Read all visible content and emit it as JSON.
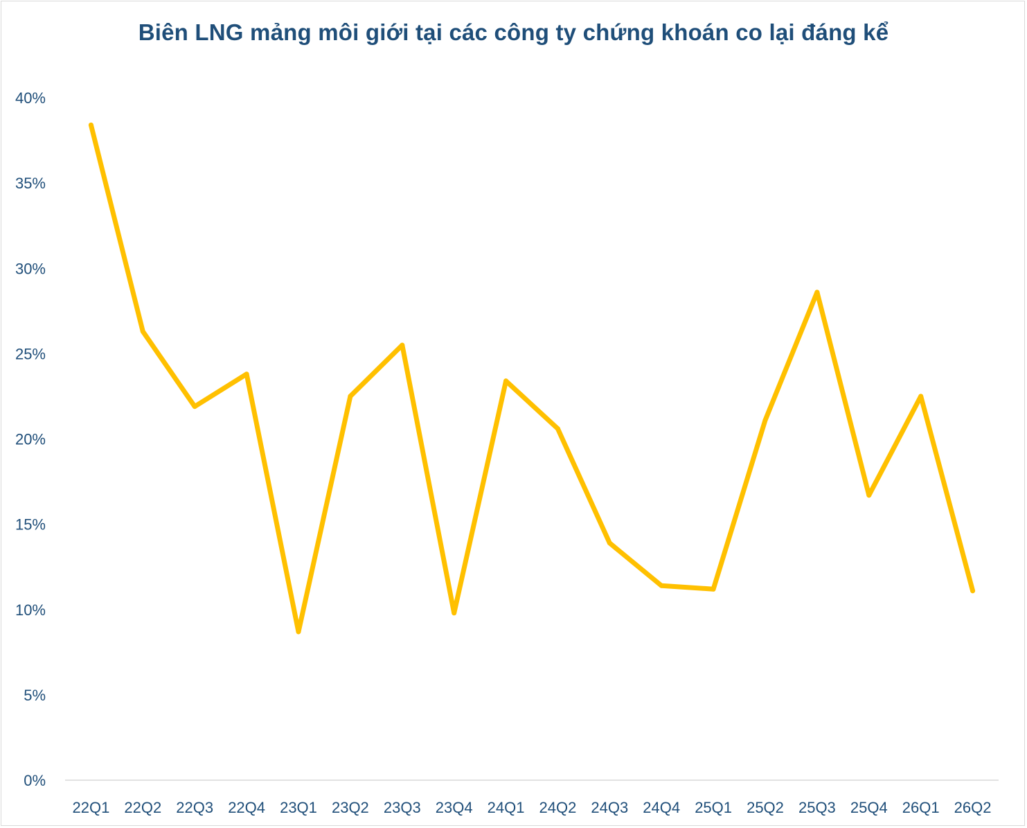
{
  "chart_data": {
    "type": "line",
    "title": "Biên LNG mảng môi giới tại các công ty chứng khoán co lại đáng kể",
    "xlabel": "",
    "ylabel": "",
    "categories": [
      "22Q1",
      "22Q2",
      "22Q3",
      "22Q4",
      "23Q1",
      "23Q2",
      "23Q3",
      "23Q4",
      "24Q1",
      "24Q2",
      "24Q3",
      "24Q4",
      "25Q1",
      "25Q2",
      "25Q3",
      "25Q4",
      "26Q1",
      "26Q2"
    ],
    "series": [
      {
        "values": [
          38.4,
          26.3,
          21.9,
          23.8,
          8.7,
          22.5,
          25.5,
          9.8,
          23.4,
          20.6,
          13.9,
          11.4,
          11.2,
          21.1,
          28.6,
          16.7,
          22.5,
          11.1
        ],
        "color": "#ffc000"
      }
    ],
    "ylim": [
      0,
      40
    ],
    "yticks": [
      "0%",
      "5%",
      "10%",
      "15%",
      "20%",
      "25%",
      "30%",
      "35%",
      "40%"
    ],
    "grid": false,
    "legend": "none"
  }
}
